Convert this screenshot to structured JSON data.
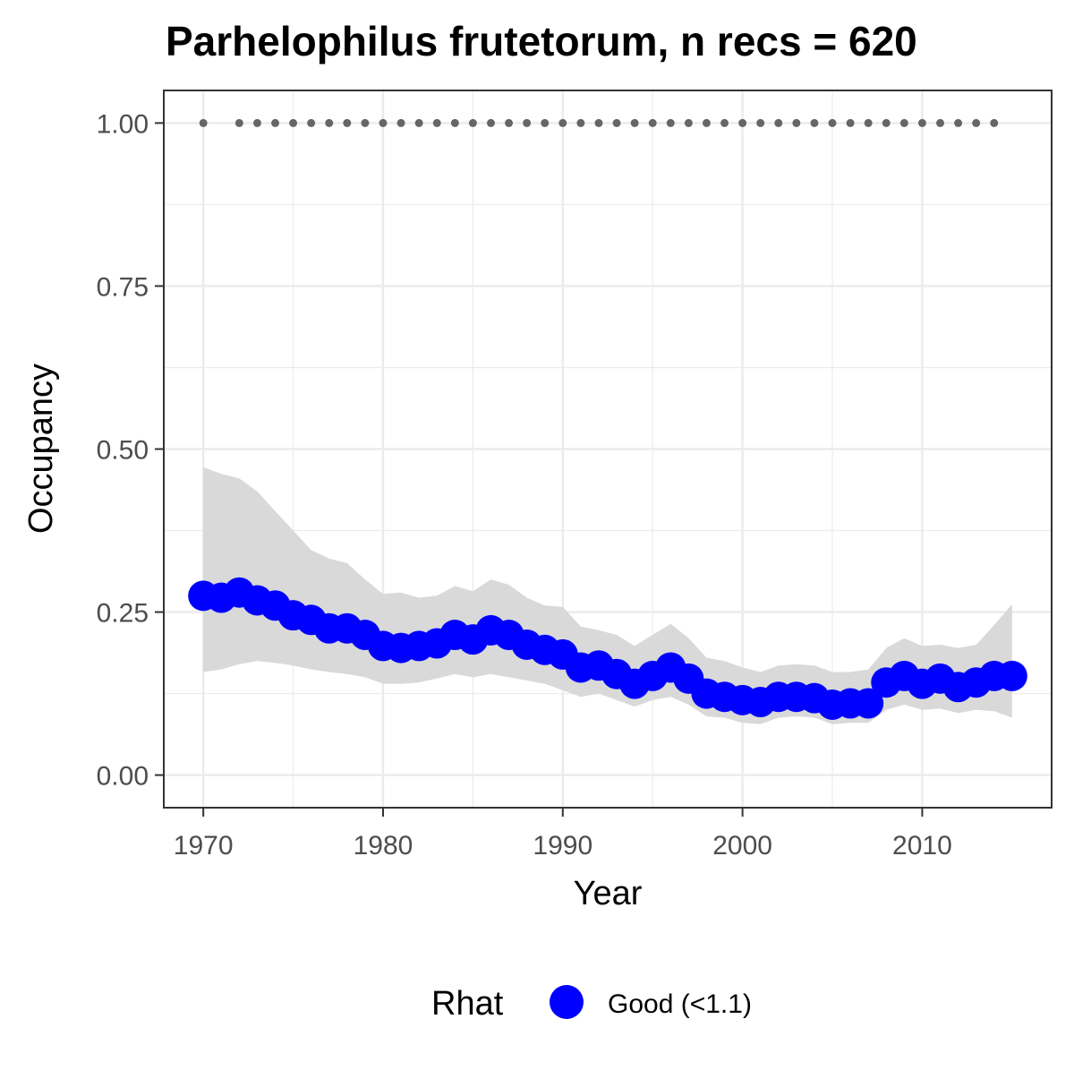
{
  "chart_data": {
    "type": "line",
    "title": "Parhelophilus frutetorum, n recs = 620",
    "xlabel": "Year",
    "ylabel": "Occupancy",
    "xlim": [
      1967.8,
      2017.2
    ],
    "ylim": [
      -0.05,
      1.05
    ],
    "x_ticks": [
      1970,
      1980,
      1990,
      2000,
      2010
    ],
    "x_tick_labels": [
      "1970",
      "1980",
      "1990",
      "2000",
      "2010"
    ],
    "y_ticks": [
      0.0,
      0.25,
      0.5,
      0.75,
      1.0
    ],
    "y_tick_labels": [
      "0.00",
      "0.25",
      "0.50",
      "0.75",
      "1.00"
    ],
    "grid": true,
    "colors": {
      "series": "#0000ff",
      "ribbon": "#d9d9d9",
      "record_points": "#666666",
      "grid": "#ebebeb",
      "panel_border": "#333333"
    },
    "series": [
      {
        "name": "Good (<1.1)",
        "x": [
          1970,
          1971,
          1972,
          1973,
          1974,
          1975,
          1976,
          1977,
          1978,
          1979,
          1980,
          1981,
          1982,
          1983,
          1984,
          1985,
          1986,
          1987,
          1988,
          1989,
          1990,
          1991,
          1992,
          1993,
          1994,
          1995,
          1996,
          1997,
          1998,
          1999,
          2000,
          2001,
          2002,
          2003,
          2004,
          2005,
          2006,
          2007,
          2008,
          2009,
          2010,
          2011,
          2012,
          2013,
          2014,
          2015
        ],
        "values": [
          0.275,
          0.272,
          0.28,
          0.268,
          0.26,
          0.245,
          0.238,
          0.225,
          0.225,
          0.215,
          0.198,
          0.195,
          0.198,
          0.202,
          0.215,
          0.208,
          0.222,
          0.215,
          0.2,
          0.192,
          0.185,
          0.165,
          0.168,
          0.155,
          0.14,
          0.152,
          0.165,
          0.148,
          0.125,
          0.12,
          0.115,
          0.112,
          0.12,
          0.12,
          0.118,
          0.108,
          0.11,
          0.11,
          0.142,
          0.152,
          0.14,
          0.148,
          0.135,
          0.142,
          0.152,
          0.152
        ],
        "lower": [
          0.158,
          0.162,
          0.17,
          0.175,
          0.172,
          0.168,
          0.162,
          0.158,
          0.155,
          0.15,
          0.14,
          0.14,
          0.142,
          0.148,
          0.155,
          0.15,
          0.155,
          0.15,
          0.145,
          0.14,
          0.13,
          0.12,
          0.125,
          0.115,
          0.105,
          0.115,
          0.12,
          0.108,
          0.09,
          0.088,
          0.08,
          0.078,
          0.088,
          0.09,
          0.088,
          0.078,
          0.08,
          0.08,
          0.1,
          0.108,
          0.1,
          0.102,
          0.095,
          0.1,
          0.098,
          0.088
        ],
        "upper": [
          0.472,
          0.462,
          0.455,
          0.435,
          0.405,
          0.375,
          0.345,
          0.332,
          0.325,
          0.3,
          0.278,
          0.28,
          0.272,
          0.275,
          0.29,
          0.282,
          0.3,
          0.292,
          0.272,
          0.26,
          0.258,
          0.228,
          0.222,
          0.215,
          0.198,
          0.215,
          0.232,
          0.21,
          0.18,
          0.175,
          0.165,
          0.158,
          0.168,
          0.17,
          0.168,
          0.158,
          0.158,
          0.162,
          0.195,
          0.21,
          0.198,
          0.2,
          0.195,
          0.2,
          0.23,
          0.262
        ]
      }
    ],
    "records": {
      "x": [
        1970,
        1972,
        1973,
        1974,
        1975,
        1976,
        1977,
        1978,
        1979,
        1980,
        1981,
        1982,
        1983,
        1984,
        1985,
        1986,
        1987,
        1988,
        1989,
        1990,
        1991,
        1992,
        1993,
        1994,
        1995,
        1996,
        1997,
        1998,
        1999,
        2000,
        2001,
        2002,
        2003,
        2004,
        2005,
        2006,
        2007,
        2008,
        2009,
        2010,
        2011,
        2012,
        2013,
        2014
      ],
      "y": 1.0
    },
    "legend": {
      "title": "Rhat",
      "position": "bottom",
      "entries": [
        "Good (<1.1)"
      ]
    }
  }
}
